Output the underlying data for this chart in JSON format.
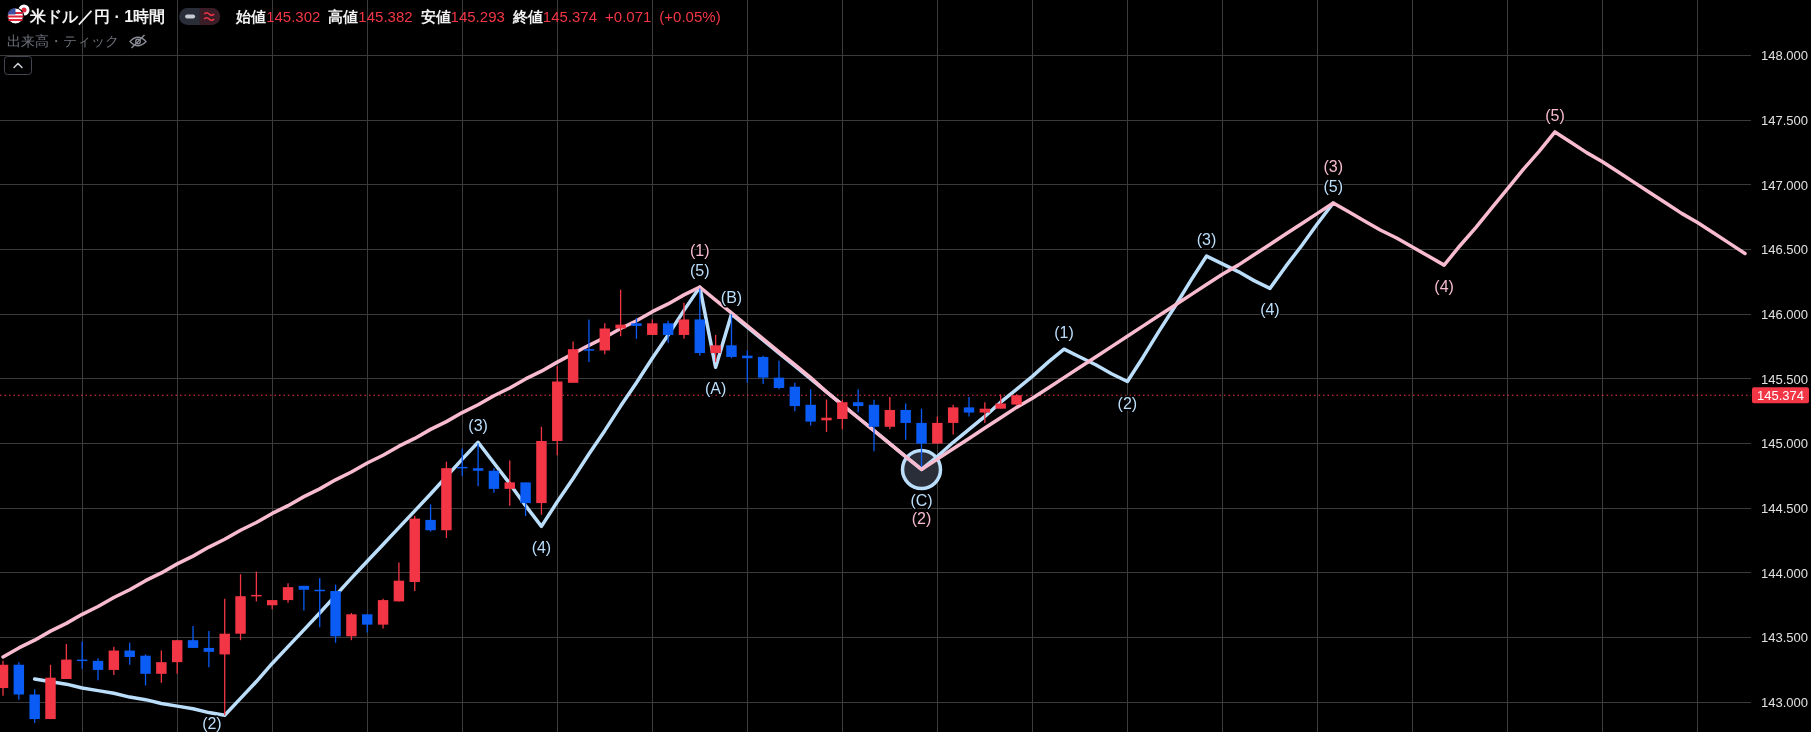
{
  "chart_data": {
    "type": "candlestick",
    "title": "米ドル／円 · 1時間",
    "annotations": [
      "始値145.302 高値145.382 安値145.293 終値145.374 +0.071 (+0.05%)",
      "出来高・ティック",
      {
        "text": "(2)",
        "y": 142.9
      },
      {
        "text": "(3)",
        "y": 145.01
      },
      {
        "text": "(4)",
        "y": 144.36
      },
      {
        "text": "(5)",
        "y": 146.21
      },
      {
        "text": "(A)",
        "y": 145.59
      },
      {
        "text": "(B)",
        "y": 146.0
      },
      {
        "text": "(C)",
        "y": 144.8
      },
      {
        "text": "(1)",
        "y": 145.73
      },
      {
        "text": "(2)",
        "y": 145.48
      },
      {
        "text": "(3)",
        "y": 146.45
      },
      {
        "text": "(4)",
        "y": 146.2
      },
      {
        "text": "(5)",
        "y": 146.86
      },
      {
        "text": "(1)",
        "y": 146.21
      },
      {
        "text": "(2)",
        "y": 144.8
      },
      {
        "text": "(3)",
        "y": 146.86
      },
      {
        "text": "(4)",
        "y": 146.38
      },
      {
        "text": "(5)",
        "y": 147.41
      }
    ],
    "categories": [
      null,
      null,
      null,
      null,
      null,
      null,
      null,
      null,
      null,
      null,
      null,
      null,
      null,
      null,
      null,
      null,
      null,
      null,
      null,
      null,
      null,
      null,
      null,
      null,
      null,
      null,
      null,
      null,
      null,
      null,
      null,
      null,
      null,
      null,
      null,
      null,
      null,
      null,
      null,
      null,
      null,
      null,
      null,
      null,
      null,
      null,
      null,
      null,
      null,
      null,
      null,
      null,
      null,
      null,
      null,
      null,
      null,
      null,
      null,
      null,
      null,
      null,
      null,
      null,
      null,
      null,
      null,
      null,
      null,
      null,
      null,
      null,
      null,
      null,
      null,
      null,
      null,
      null,
      null,
      null,
      null,
      null,
      null,
      null,
      null,
      null,
      null,
      null,
      null,
      null,
      null,
      null,
      null,
      null,
      null,
      null,
      null,
      null,
      null,
      null,
      null,
      null,
      null,
      null,
      null,
      null,
      null,
      null,
      null,
      null,
      null
    ],
    "ohlc": [
      [
        143.11,
        143.32,
        143.05,
        143.29
      ],
      [
        143.29,
        143.31,
        143.02,
        143.06
      ],
      [
        143.06,
        143.1,
        142.84,
        142.87
      ],
      [
        142.87,
        143.29,
        142.87,
        143.19
      ],
      [
        143.18,
        143.45,
        143.18,
        143.33
      ],
      [
        143.33,
        143.47,
        143.26,
        143.32
      ],
      [
        143.32,
        143.34,
        143.17,
        143.25
      ],
      [
        143.25,
        143.43,
        143.21,
        143.4
      ],
      [
        143.4,
        143.46,
        143.29,
        143.35
      ],
      [
        143.36,
        143.37,
        143.13,
        143.22
      ],
      [
        143.22,
        143.4,
        143.15,
        143.31
      ],
      [
        143.31,
        143.48,
        143.22,
        143.48
      ],
      [
        143.48,
        143.59,
        143.42,
        143.42
      ],
      [
        143.42,
        143.55,
        143.27,
        143.39
      ],
      [
        143.37,
        143.8,
        142.9,
        143.53
      ],
      [
        143.53,
        143.99,
        143.48,
        143.82
      ],
      [
        143.82,
        144.01,
        143.78,
        143.83
      ],
      [
        143.75,
        143.79,
        143.72,
        143.79
      ],
      [
        143.79,
        143.92,
        143.77,
        143.89
      ],
      [
        143.9,
        143.9,
        143.71,
        143.87
      ],
      [
        143.87,
        143.96,
        143.58,
        143.86
      ],
      [
        143.86,
        143.91,
        143.46,
        143.51
      ],
      [
        143.51,
        143.69,
        143.48,
        143.68
      ],
      [
        143.68,
        143.68,
        143.54,
        143.6
      ],
      [
        143.6,
        143.8,
        143.57,
        143.79
      ],
      [
        143.78,
        144.08,
        143.78,
        143.94
      ],
      [
        143.93,
        144.44,
        143.86,
        144.42
      ],
      [
        144.41,
        144.53,
        144.32,
        144.33
      ],
      [
        144.33,
        144.86,
        144.27,
        144.81
      ],
      [
        144.82,
        144.96,
        144.75,
        144.81
      ],
      [
        144.81,
        145.0,
        144.67,
        144.79
      ],
      [
        144.79,
        144.81,
        144.62,
        144.65
      ],
      [
        144.65,
        144.87,
        144.52,
        144.7
      ],
      [
        144.7,
        144.7,
        144.44,
        144.54
      ],
      [
        144.54,
        145.13,
        144.45,
        145.02
      ],
      [
        145.02,
        145.6,
        144.91,
        145.48
      ],
      [
        145.47,
        145.79,
        145.47,
        145.73
      ],
      [
        145.73,
        145.96,
        145.63,
        145.72
      ],
      [
        145.72,
        145.93,
        145.69,
        145.89
      ],
      [
        145.89,
        146.19,
        145.83,
        145.92
      ],
      [
        145.93,
        145.97,
        145.81,
        145.91
      ],
      [
        145.84,
        145.96,
        145.84,
        145.93
      ],
      [
        145.93,
        145.95,
        145.78,
        145.84
      ],
      [
        145.84,
        146.09,
        145.81,
        145.96
      ],
      [
        145.96,
        146.2,
        145.68,
        145.7
      ],
      [
        145.7,
        145.84,
        145.63,
        145.76
      ],
      [
        145.76,
        146.0,
        145.66,
        145.67
      ],
      [
        145.68,
        145.72,
        145.47,
        145.66
      ],
      [
        145.67,
        145.68,
        145.46,
        145.51
      ],
      [
        145.51,
        145.64,
        145.42,
        145.43
      ],
      [
        145.44,
        145.47,
        145.25,
        145.29
      ],
      [
        145.3,
        145.42,
        145.14,
        145.17
      ],
      [
        145.18,
        145.34,
        145.09,
        145.2
      ],
      [
        145.19,
        145.34,
        145.11,
        145.32
      ],
      [
        145.32,
        145.42,
        145.24,
        145.29
      ],
      [
        145.3,
        145.34,
        144.94,
        145.13
      ],
      [
        145.13,
        145.36,
        145.11,
        145.26
      ],
      [
        145.26,
        145.31,
        145.03,
        145.16
      ],
      [
        145.16,
        145.27,
        144.82,
        145.0
      ],
      [
        145.0,
        145.21,
        145.0,
        145.16
      ],
      [
        145.16,
        145.3,
        145.07,
        145.28
      ],
      [
        145.28,
        145.36,
        145.21,
        145.24
      ],
      [
        145.24,
        145.32,
        145.16,
        145.27
      ],
      [
        145.27,
        145.38,
        145.27,
        145.31
      ],
      [
        145.302,
        145.382,
        145.293,
        145.374
      ],
      null,
      null,
      null,
      null,
      null,
      null,
      null,
      null,
      null,
      null,
      null,
      null,
      null,
      null,
      null,
      null,
      null,
      null,
      null,
      null,
      null,
      null,
      null,
      null,
      null,
      null,
      null,
      null,
      null,
      null,
      null,
      null,
      null,
      null,
      null,
      null,
      null,
      null,
      null,
      null,
      null,
      null,
      null,
      null,
      null,
      null
    ],
    "colors": [
      "#f23645",
      "#0a5cf5",
      "#0a5cf5",
      "#f23645",
      "#f23645",
      "#0a5cf5",
      "#0a5cf5",
      "#f23645",
      "#0a5cf5",
      "#0a5cf5",
      "#f23645",
      "#f23645",
      "#0a5cf5",
      "#0a5cf5",
      "#f23645",
      "#f23645",
      "#f23645",
      "#f23645",
      "#f23645",
      "#0a5cf5",
      "#0a5cf5",
      "#0a5cf5",
      "#f23645",
      "#0a5cf5",
      "#f23645",
      "#f23645",
      "#f23645",
      "#0a5cf5",
      "#f23645",
      "#0a5cf5",
      "#0a5cf5",
      "#0a5cf5",
      "#f23645",
      "#0a5cf5",
      "#f23645",
      "#f23645",
      "#f23645",
      "#0a5cf5",
      "#f23645",
      "#f23645",
      "#0a5cf5",
      "#f23645",
      "#0a5cf5",
      "#f23645",
      "#0a5cf5",
      "#f23645",
      "#0a5cf5",
      "#0a5cf5",
      "#0a5cf5",
      "#0a5cf5",
      "#0a5cf5",
      "#0a5cf5",
      "#f23645",
      "#f23645",
      "#0a5cf5",
      "#0a5cf5",
      "#f23645",
      "#0a5cf5",
      "#0a5cf5",
      "#f23645",
      "#f23645",
      "#0a5cf5",
      "#f23645",
      "#f23645",
      "#f23645",
      null,
      null,
      null,
      null,
      null,
      null,
      null,
      null,
      null,
      null,
      null,
      null,
      null,
      null,
      null,
      null,
      null,
      null,
      null,
      null,
      null,
      null,
      null,
      null,
      null,
      null,
      null,
      null,
      null,
      null,
      null,
      null,
      null,
      null,
      null,
      null,
      null,
      null,
      null,
      null,
      null,
      null,
      null,
      null,
      null,
      null
    ],
    "series": [
      {
        "type": "line",
        "color": "#bbdefb",
        "values": [
          null,
          null,
          143.18,
          null,
          143.14,
          143.11,
          143.09,
          143.07,
          143.04,
          143.02,
          142.99,
          142.97,
          142.95,
          142.92,
          142.9,
          143.03,
          143.16,
          143.3,
          143.43,
          143.56,
          143.69,
          null,
          143.96,
          144.09,
          144.22,
          144.35,
          144.48,
          144.61,
          null,
          144.88,
          145.01,
          144.85,
          144.69,
          144.52,
          144.36,
          144.55,
          144.73,
          144.92,
          145.1,
          145.29,
          145.47,
          145.66,
          145.84,
          146.03,
          146.21,
          145.59,
          146.0,
          145.9,
          145.8,
          145.7,
          145.6,
          145.5,
          145.4,
          null,
          145.2,
          145.1,
          145.0,
          144.9,
          144.8,
          144.9,
          145.01,
          145.11,
          145.21,
          145.32,
          145.42,
          145.52,
          145.63,
          145.73,
          145.67,
          145.61,
          145.54,
          145.48,
          145.67,
          145.87,
          146.06,
          146.26,
          146.45,
          146.39,
          146.33,
          146.26,
          146.2,
          146.37,
          146.53,
          146.7,
          146.86,
          null,
          null,
          null,
          null,
          null,
          null,
          null,
          null,
          null,
          null,
          null,
          null,
          null,
          null,
          null,
          null,
          null,
          null,
          null,
          null,
          null,
          null,
          null,
          null,
          null,
          null
        ]
      },
      {
        "type": "line",
        "color": "#f8bbd0",
        "values": [
          143.35,
          143.42,
          143.48,
          143.55,
          143.61,
          143.68,
          143.74,
          143.81,
          143.87,
          143.94,
          144.0,
          144.07,
          144.13,
          144.2,
          144.26,
          144.33,
          144.39,
          144.46,
          144.52,
          144.59,
          144.65,
          144.72,
          144.78,
          144.85,
          144.91,
          144.98,
          145.04,
          145.11,
          145.17,
          145.24,
          145.3,
          145.37,
          145.43,
          145.5,
          145.56,
          145.63,
          null,
          145.76,
          145.82,
          145.89,
          145.95,
          146.02,
          146.08,
          146.15,
          146.21,
          146.11,
          146.01,
          145.91,
          145.81,
          145.71,
          145.61,
          145.51,
          145.4,
          145.3,
          145.2,
          145.1,
          145.0,
          144.9,
          144.8,
          144.88,
          144.96,
          145.04,
          145.12,
          145.2,
          145.28,
          145.35,
          145.43,
          145.51,
          145.59,
          145.67,
          145.75,
          145.83,
          145.91,
          145.99,
          146.07,
          146.15,
          146.23,
          146.31,
          146.38,
          146.46,
          146.54,
          146.62,
          146.7,
          146.78,
          146.86,
          146.79,
          146.72,
          146.65,
          146.59,
          146.52,
          146.45,
          146.38,
          146.53,
          146.67,
          146.82,
          146.97,
          147.12,
          147.26,
          147.41,
          147.33,
          147.25,
          147.18,
          147.1,
          147.02,
          146.94,
          146.86,
          146.78,
          146.71,
          146.63,
          146.55,
          146.47
        ]
      }
    ],
    "ylim": [
      142.77,
      148.43
    ],
    "yticks": [
      {
        "value": 143,
        "label": "143.000"
      },
      {
        "value": 143.5,
        "label": "143.500"
      },
      {
        "value": 144,
        "label": "144.000"
      },
      {
        "value": 144.5,
        "label": "144.500"
      },
      {
        "value": 145,
        "label": "145.000"
      },
      {
        "value": 145.5,
        "label": "145.500"
      },
      {
        "value": 146,
        "label": "146.000"
      },
      {
        "value": 146.5,
        "label": "146.500"
      },
      {
        "value": 147,
        "label": "147.000"
      },
      {
        "value": 147.5,
        "label": "147.500"
      },
      {
        "value": 148,
        "label": "148.000"
      }
    ],
    "ref_lines": [
      {
        "axis": "y",
        "value": 145.374,
        "label": "145.374",
        "color": "#f23645",
        "line_style": "dotted"
      }
    ],
    "grid": true
  }
}
